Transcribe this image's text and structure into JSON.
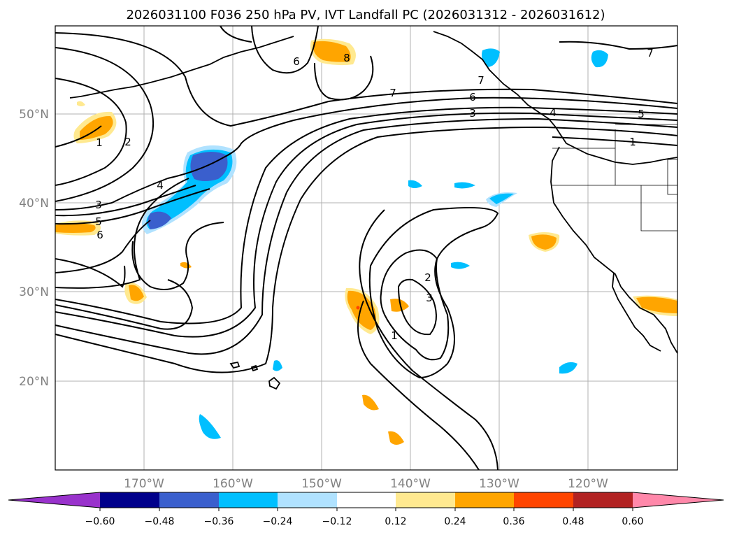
{
  "title": "2026031100 F036 250 hPa PV, IVT Landfall PC (2026031312 - 2026031612)",
  "axes": {
    "longitude_ticks": [
      "170°W",
      "160°W",
      "150°W",
      "140°W",
      "130°W",
      "120°W"
    ],
    "latitude_ticks": [
      "20°N",
      "30°N",
      "40°N",
      "50°N"
    ]
  },
  "colorbar": {
    "ticks": [
      "−0.60",
      "−0.48",
      "−0.36",
      "−0.24",
      "−0.12",
      "0.12",
      "0.24",
      "0.36",
      "0.48",
      "0.60"
    ],
    "colors": [
      "#9932cc",
      "#00008b",
      "#3a5fcd",
      "#00bfff",
      "#b0e2ff",
      "#ffffff",
      "#ffe990",
      "#ffa500",
      "#ff4500",
      "#b22222",
      "#ff88aa"
    ]
  },
  "contour_labels": [
    "7",
    "6",
    "8",
    "7",
    "6",
    "3",
    "4",
    "5",
    "1",
    "1",
    "2",
    "4",
    "3",
    "5",
    "6",
    "2",
    "3",
    "1",
    "7"
  ]
}
